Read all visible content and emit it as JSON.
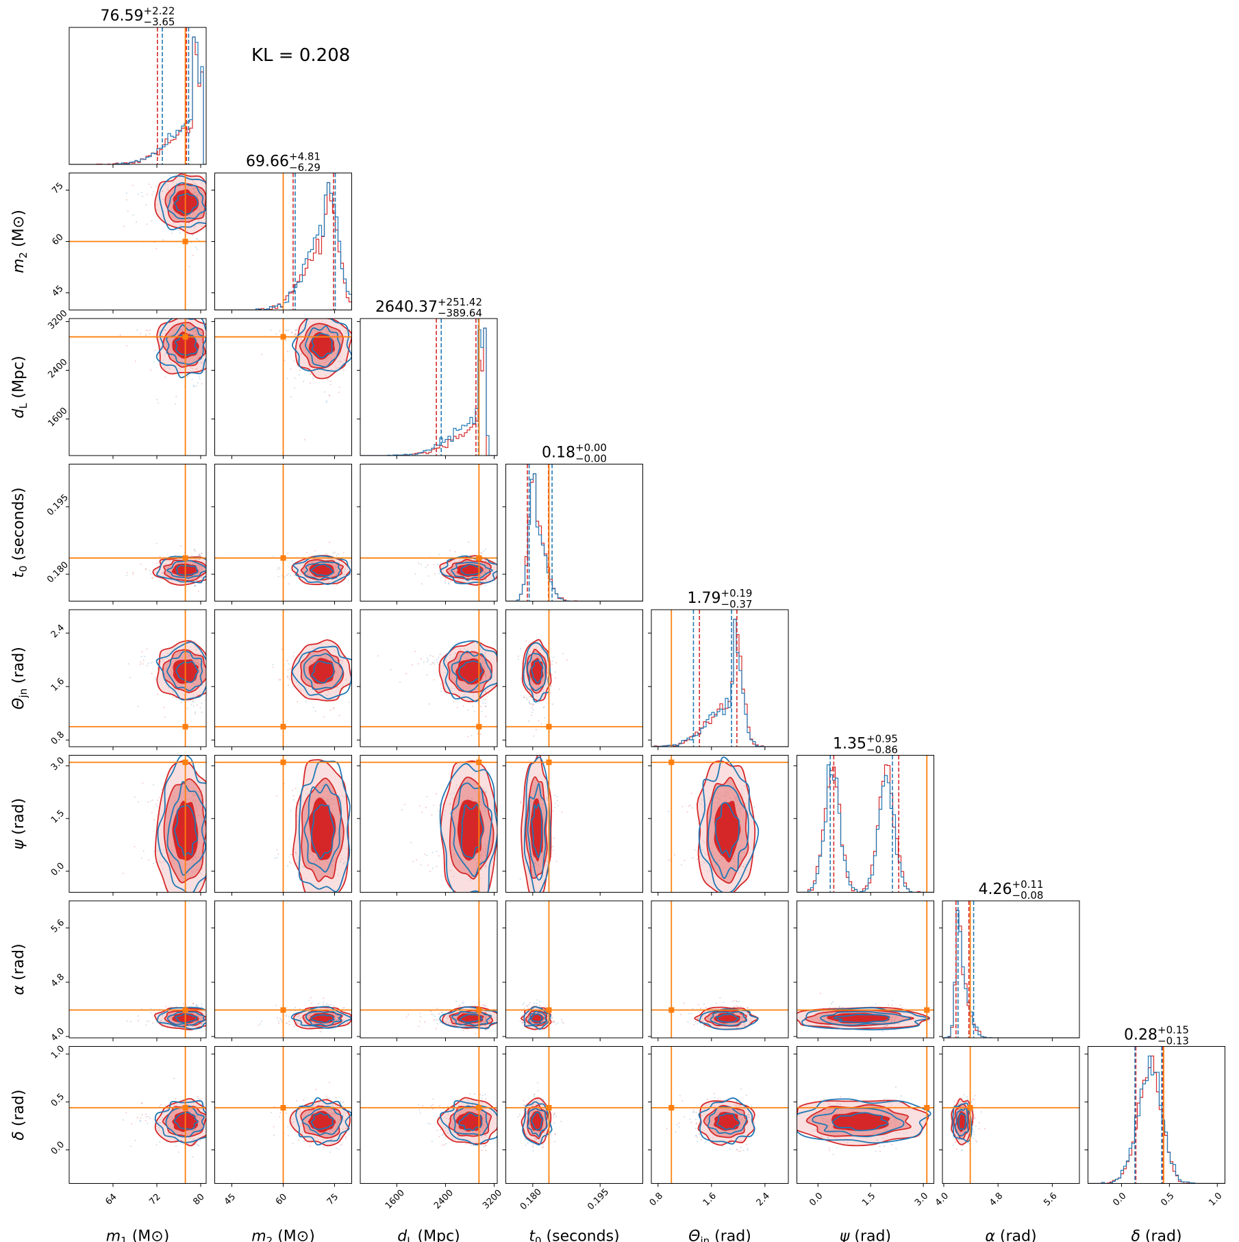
{
  "chart_data": {
    "type": "corner",
    "annotation": "KL = 0.208",
    "colors": {
      "run_a": "#d62728",
      "run_b": "#1f77b4",
      "truth": "#ff7f0e"
    },
    "series": [
      {
        "name": "",
        "color": "#d62728"
      },
      {
        "name": "",
        "color": "#1f77b4"
      }
    ],
    "parameters": [
      {
        "key": "m1",
        "axis_label": "m₁ (M⊙)",
        "ylabel_main": "",
        "ylabel_sub": "",
        "xlabel_main": "m",
        "xlabel_sub": "1",
        "xlabel_unit": " (M⊙)",
        "range": [
          56,
          81
        ],
        "ticks": [
          64,
          72,
          80
        ],
        "tick_labels": [
          "64",
          "72",
          "80"
        ],
        "truth": 77.2,
        "title": {
          "median": "76.59",
          "plus": "+2.22",
          "minus": "−3.65"
        },
        "quantiles_run_a": [
          72.1,
          77.4
        ],
        "quantiles_run_b": [
          73.0,
          77.8
        ],
        "hist": {
          "mode": 78.5,
          "left_width": 4.5,
          "right_width": 1.2,
          "cut_right": 80.2
        }
      },
      {
        "key": "m2",
        "axis_label": "m₂ (M⊙)",
        "ylabel_main": "m",
        "ylabel_sub": "2",
        "ylabel_unit": " (M⊙)",
        "xlabel_main": "m",
        "xlabel_sub": "2",
        "xlabel_unit": " (M⊙)",
        "range": [
          40,
          80
        ],
        "ticks": [
          45,
          60,
          75
        ],
        "tick_labels": [
          "45",
          "60",
          "75"
        ],
        "truth": 60.0,
        "title": {
          "median": "69.66",
          "plus": "+4.81",
          "minus": "−6.29"
        },
        "quantiles_run_a": [
          62.9,
          74.7
        ],
        "quantiles_run_b": [
          63.5,
          75.2
        ],
        "hist": {
          "mode": 72.5,
          "left_width": 6.0,
          "right_width": 3.0,
          "cut_right": 80
        }
      },
      {
        "key": "dL",
        "axis_label": "d_L (Mpc)",
        "ylabel_main": "d",
        "ylabel_sub": "L",
        "ylabel_unit": " (Mpc)",
        "xlabel_main": "d",
        "xlabel_sub": "L",
        "xlabel_unit": " (Mpc)",
        "range": [
          1000,
          3250
        ],
        "ticks": [
          1600,
          2400,
          3200
        ],
        "tick_labels": [
          "1600",
          "2400",
          "3200"
        ],
        "truth": 2950,
        "title": {
          "median": "2640.37",
          "plus": "+251.42",
          "minus": "−389.64"
        },
        "quantiles_run_a": [
          2250,
          2900
        ],
        "quantiles_run_b": [
          2330,
          2940
        ],
        "hist": {
          "mode": 2930,
          "left_width": 420,
          "right_width": 110,
          "cut_right": 3060
        }
      },
      {
        "key": "t0",
        "axis_label": "t₀ (seconds)",
        "ylabel_main": "t",
        "ylabel_sub": "0",
        "ylabel_unit": " (seconds)",
        "xlabel_main": "t",
        "xlabel_sub": "0",
        "xlabel_unit": " (seconds)",
        "range": [
          0.174,
          0.2045
        ],
        "ticks": [
          0.18,
          0.195
        ],
        "tick_labels": [
          "0.180",
          "0.195"
        ],
        "truth": 0.1836,
        "title": {
          "median": "0.18",
          "plus": "+0.00",
          "minus": "−0.00"
        },
        "quantiles_run_a": [
          0.1788,
          0.1835
        ],
        "quantiles_run_b": [
          0.1792,
          0.1843
        ],
        "hist": {
          "mode": 0.1805,
          "left_width": 0.0012,
          "right_width": 0.0022,
          "cut_right": 0.2045
        }
      },
      {
        "key": "theta_jn",
        "axis_label": "Θ_jn (rad)",
        "ylabel_main": "Θ",
        "ylabel_sub": "jn",
        "ylabel_unit": " (rad)",
        "xlabel_main": "Θ",
        "xlabel_sub": "jn",
        "xlabel_unit": " (rad)",
        "range": [
          0.7,
          2.75
        ],
        "ticks": [
          0.8,
          1.6,
          2.4
        ],
        "tick_labels": [
          "0.8",
          "1.6",
          "2.4"
        ],
        "truth": 1.0,
        "title": {
          "median": "1.79",
          "plus": "+0.19",
          "minus": "−0.37"
        },
        "quantiles_run_a": [
          1.42,
          1.98
        ],
        "quantiles_run_b": [
          1.33,
          1.9
        ],
        "hist": {
          "mode": 1.92,
          "left_width": 0.35,
          "right_width": 0.12,
          "cut_right": 2.4
        }
      },
      {
        "key": "psi",
        "axis_label": "ψ (rad)",
        "ylabel_main": "ψ",
        "ylabel_sub": "",
        "ylabel_unit": " (rad)",
        "xlabel_main": "ψ",
        "xlabel_sub": "",
        "xlabel_unit": " (rad)",
        "range": [
          -0.6,
          3.3
        ],
        "ticks": [
          0.0,
          1.5,
          3.0
        ],
        "tick_labels": [
          "0.0",
          "1.5",
          "3.0"
        ],
        "truth": 3.1,
        "title": {
          "median": "1.35",
          "plus": "+0.95",
          "minus": "−0.86"
        },
        "quantiles_run_a": [
          0.45,
          2.3
        ],
        "quantiles_run_b": [
          0.35,
          2.12
        ],
        "hist": {
          "bimodal": [
            0.4,
            1.95
          ],
          "width": 0.14,
          "cut_right": 3.14
        }
      },
      {
        "key": "alpha",
        "axis_label": "α (rad)",
        "ylabel_main": "α",
        "ylabel_sub": "",
        "ylabel_unit": " (rad)",
        "xlabel_main": "α",
        "xlabel_sub": "",
        "xlabel_unit": " (rad)",
        "range": [
          3.98,
          6.0
        ],
        "ticks": [
          4.0,
          4.8,
          5.6
        ],
        "tick_labels": [
          "4.0",
          "4.8",
          "5.6"
        ],
        "truth": 4.39,
        "title": {
          "median": "4.26",
          "plus": "+0.11",
          "minus": "−0.08"
        },
        "quantiles_run_a": [
          4.18,
          4.37
        ],
        "quantiles_run_b": [
          4.21,
          4.44
        ],
        "hist": {
          "mode": 4.24,
          "left_width": 0.05,
          "right_width": 0.12,
          "cut_right": 6.0
        }
      },
      {
        "key": "delta",
        "axis_label": "δ (rad)",
        "ylabel_main": "δ",
        "ylabel_sub": "",
        "ylabel_unit": " (rad)",
        "xlabel_main": "δ",
        "xlabel_sub": "",
        "xlabel_unit": " (rad)",
        "range": [
          -0.35,
          1.08
        ],
        "ticks": [
          0.0,
          0.5,
          1.0
        ],
        "tick_labels": [
          "0.0",
          "0.5",
          "1.0"
        ],
        "truth": 0.44,
        "title": {
          "median": "0.28",
          "plus": "+0.15",
          "minus": "−0.13"
        },
        "quantiles_run_a": [
          0.15,
          0.43
        ],
        "quantiles_run_b": [
          0.14,
          0.42
        ],
        "hist": {
          "mode": 0.3,
          "left_width": 0.13,
          "right_width": 0.12,
          "cut_right": 1.08
        }
      }
    ],
    "ylabels_on_rows": [
      {
        "main": "m",
        "sub": "2",
        "unit": " (M⊙)"
      },
      {
        "main": "d",
        "sub": "L",
        "unit": " (Mpc)"
      },
      {
        "main": "t",
        "sub": "0",
        "unit": " (seconds)"
      },
      {
        "main": "Θ",
        "sub": "jn",
        "unit": " (rad)"
      },
      {
        "main": "ψ",
        "sub": "",
        "unit": " (rad)"
      },
      {
        "main": "α",
        "sub": "",
        "unit": " (rad)"
      },
      {
        "main": "δ",
        "sub": "",
        "unit": " (rad)"
      }
    ]
  }
}
